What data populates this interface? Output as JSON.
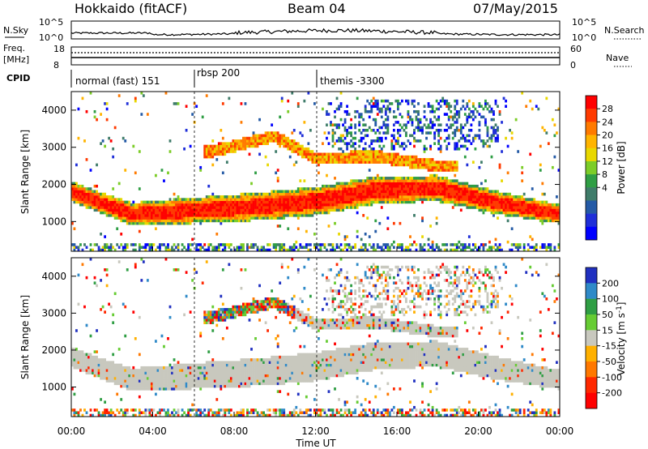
{
  "header": {
    "station": "Hokkaido (fitACF)",
    "beam": "Beam 04",
    "date": "07/May/2015"
  },
  "noise_panel": {
    "left_label": "N.Sky",
    "right_label": "N.Search",
    "left_ticks": [
      "10^5",
      "10^0"
    ],
    "right_ticks": [
      "10^5",
      "10^0"
    ]
  },
  "freq_panel": {
    "left_label_top": "Freq.",
    "left_label_unit": "[MHz]",
    "right_label": "Nave",
    "left_ticks": [
      "18",
      "8"
    ],
    "right_ticks": [
      "60",
      "0"
    ]
  },
  "cpid_panel": {
    "label": "CPID",
    "segments": [
      {
        "name": "normal (fast) 151",
        "start_hour": 0
      },
      {
        "name": "rbsp 200",
        "start_hour": 6
      },
      {
        "name": "themis -3300",
        "start_hour": 12
      }
    ]
  },
  "chart_data": [
    {
      "type": "heatmap",
      "panel": "power",
      "ylabel": "Slant Range [km]",
      "xlabel": "",
      "xlim_hours": [
        0,
        24
      ],
      "ylim": [
        200,
        4500
      ],
      "yticks": [
        "1000",
        "2000",
        "3000",
        "4000"
      ],
      "colorbar": {
        "label": "Power [dB]",
        "ticks": [
          "28",
          "24",
          "20",
          "16",
          "12",
          "8",
          "4"
        ],
        "colors": [
          "#ff0000",
          "#ff3a00",
          "#ff7a00",
          "#ffb400",
          "#e8d800",
          "#7ccd28",
          "#2f9e44",
          "#3f7c6a",
          "#245aa6",
          "#1f2fd8",
          "#0000ff"
        ]
      },
      "features": [
        {
          "name": "main band",
          "ranges_km": [
            [
              0,
              1800
            ],
            [
              3,
              1200
            ],
            [
              6,
              1300
            ],
            [
              9,
              1400
            ],
            [
              12,
              1550
            ],
            [
              15,
              1850
            ],
            [
              18,
              1900
            ],
            [
              21,
              1500
            ],
            [
              24,
              1200
            ]
          ]
        },
        {
          "name": "upper band",
          "ranges_km": [
            [
              7,
              2900
            ],
            [
              10,
              3300
            ],
            [
              12,
              2700
            ],
            [
              15,
              2750
            ],
            [
              18,
              2500
            ]
          ]
        }
      ]
    },
    {
      "type": "heatmap",
      "panel": "velocity",
      "ylabel": "Slant Range [km]",
      "xlabel": "Time UT",
      "xlim_hours": [
        0,
        24
      ],
      "ylim": [
        200,
        4500
      ],
      "yticks": [
        "1000",
        "2000",
        "3000",
        "4000"
      ],
      "xticks": [
        "00:00",
        "04:00",
        "08:00",
        "12:00",
        "16:00",
        "20:00",
        "00:00"
      ],
      "colorbar": {
        "label": "Velocity [m s",
        "label_superscript": "-1",
        "label_close": "]",
        "ticks": [
          "200",
          "100",
          "50",
          "15",
          "-15",
          "-50",
          "-100",
          "-200"
        ],
        "colors": [
          "#2030c0",
          "#2f8ac8",
          "#2f9e44",
          "#66cc33",
          "#c8c8be",
          "#ffb000",
          "#ff7800",
          "#ff2800",
          "#ff0000"
        ]
      },
      "ground_scatter_color": "#c8c8be"
    }
  ],
  "colors": {
    "ground_scatter": "#c8c8be",
    "noise_trace": "#000000"
  }
}
